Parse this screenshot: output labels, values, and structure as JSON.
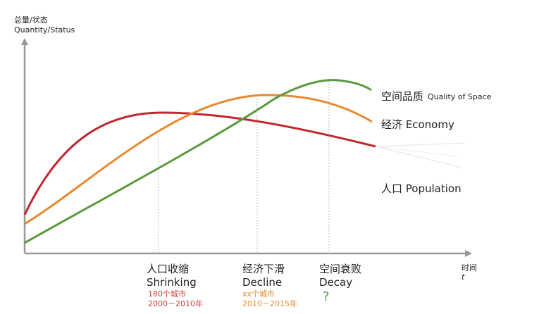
{
  "y_axis": {
    "label_zh": "总量/状态",
    "label_en": "Quantity/Status"
  },
  "x_axis": {
    "label_zh": "时间",
    "label_en": "t"
  },
  "curves": [
    {
      "label_zh": "空间品质",
      "label_en": "Quality of Space"
    },
    {
      "label": "经济 Economy"
    },
    {
      "label": "人口 Population"
    }
  ],
  "stages": [
    {
      "title_zh": "人口收缩",
      "title_en": "Shrinking",
      "note1": "180个城市",
      "note2": "2000－2010年"
    },
    {
      "title_zh": "经济下滑",
      "title_en": "Decline",
      "note1": "xx个城市",
      "note2": "2010－2015年"
    },
    {
      "title_zh": "空间衰败",
      "title_en": "Decay",
      "note1": "?"
    }
  ]
}
